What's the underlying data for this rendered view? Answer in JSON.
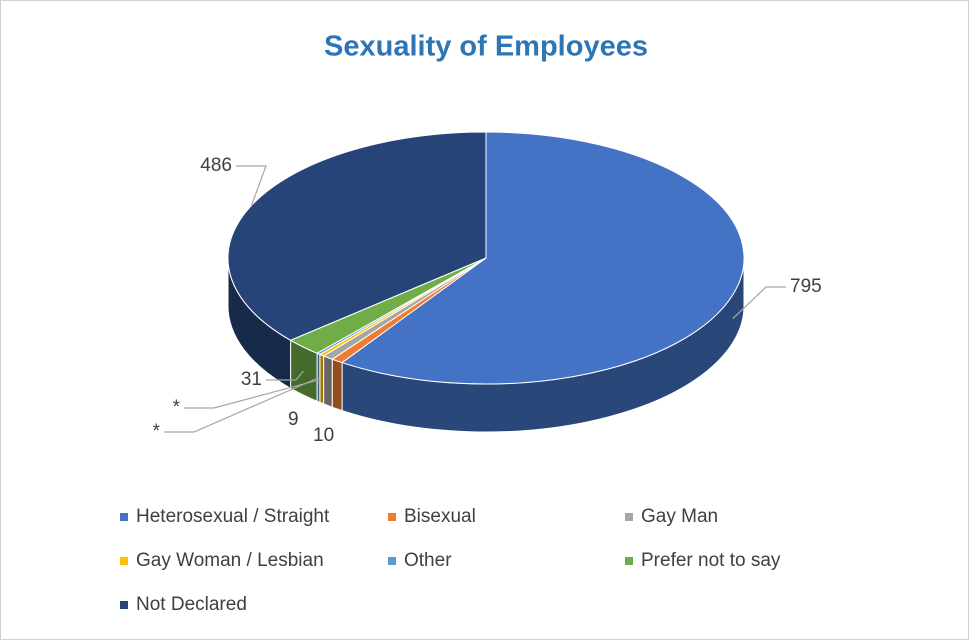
{
  "chart_data": {
    "type": "pie3d",
    "title": "Sexuality of Employees",
    "categories": [
      "Heterosexual / Straight",
      "Bisexual",
      "Gay Man",
      "Gay Woman / Lesbian",
      "Other",
      "Prefer not to say",
      "Not Declared"
    ],
    "values": [
      795,
      10,
      9,
      4,
      3,
      31,
      486
    ],
    "value_labels": [
      "795",
      "10",
      "9",
      "*",
      "*",
      "31",
      "486"
    ],
    "colors": [
      "#4472c4",
      "#ed7d31",
      "#a5a5a5",
      "#ffc000",
      "#5b9bd5",
      "#70ad47",
      "#264478"
    ],
    "legend": "bottom"
  }
}
